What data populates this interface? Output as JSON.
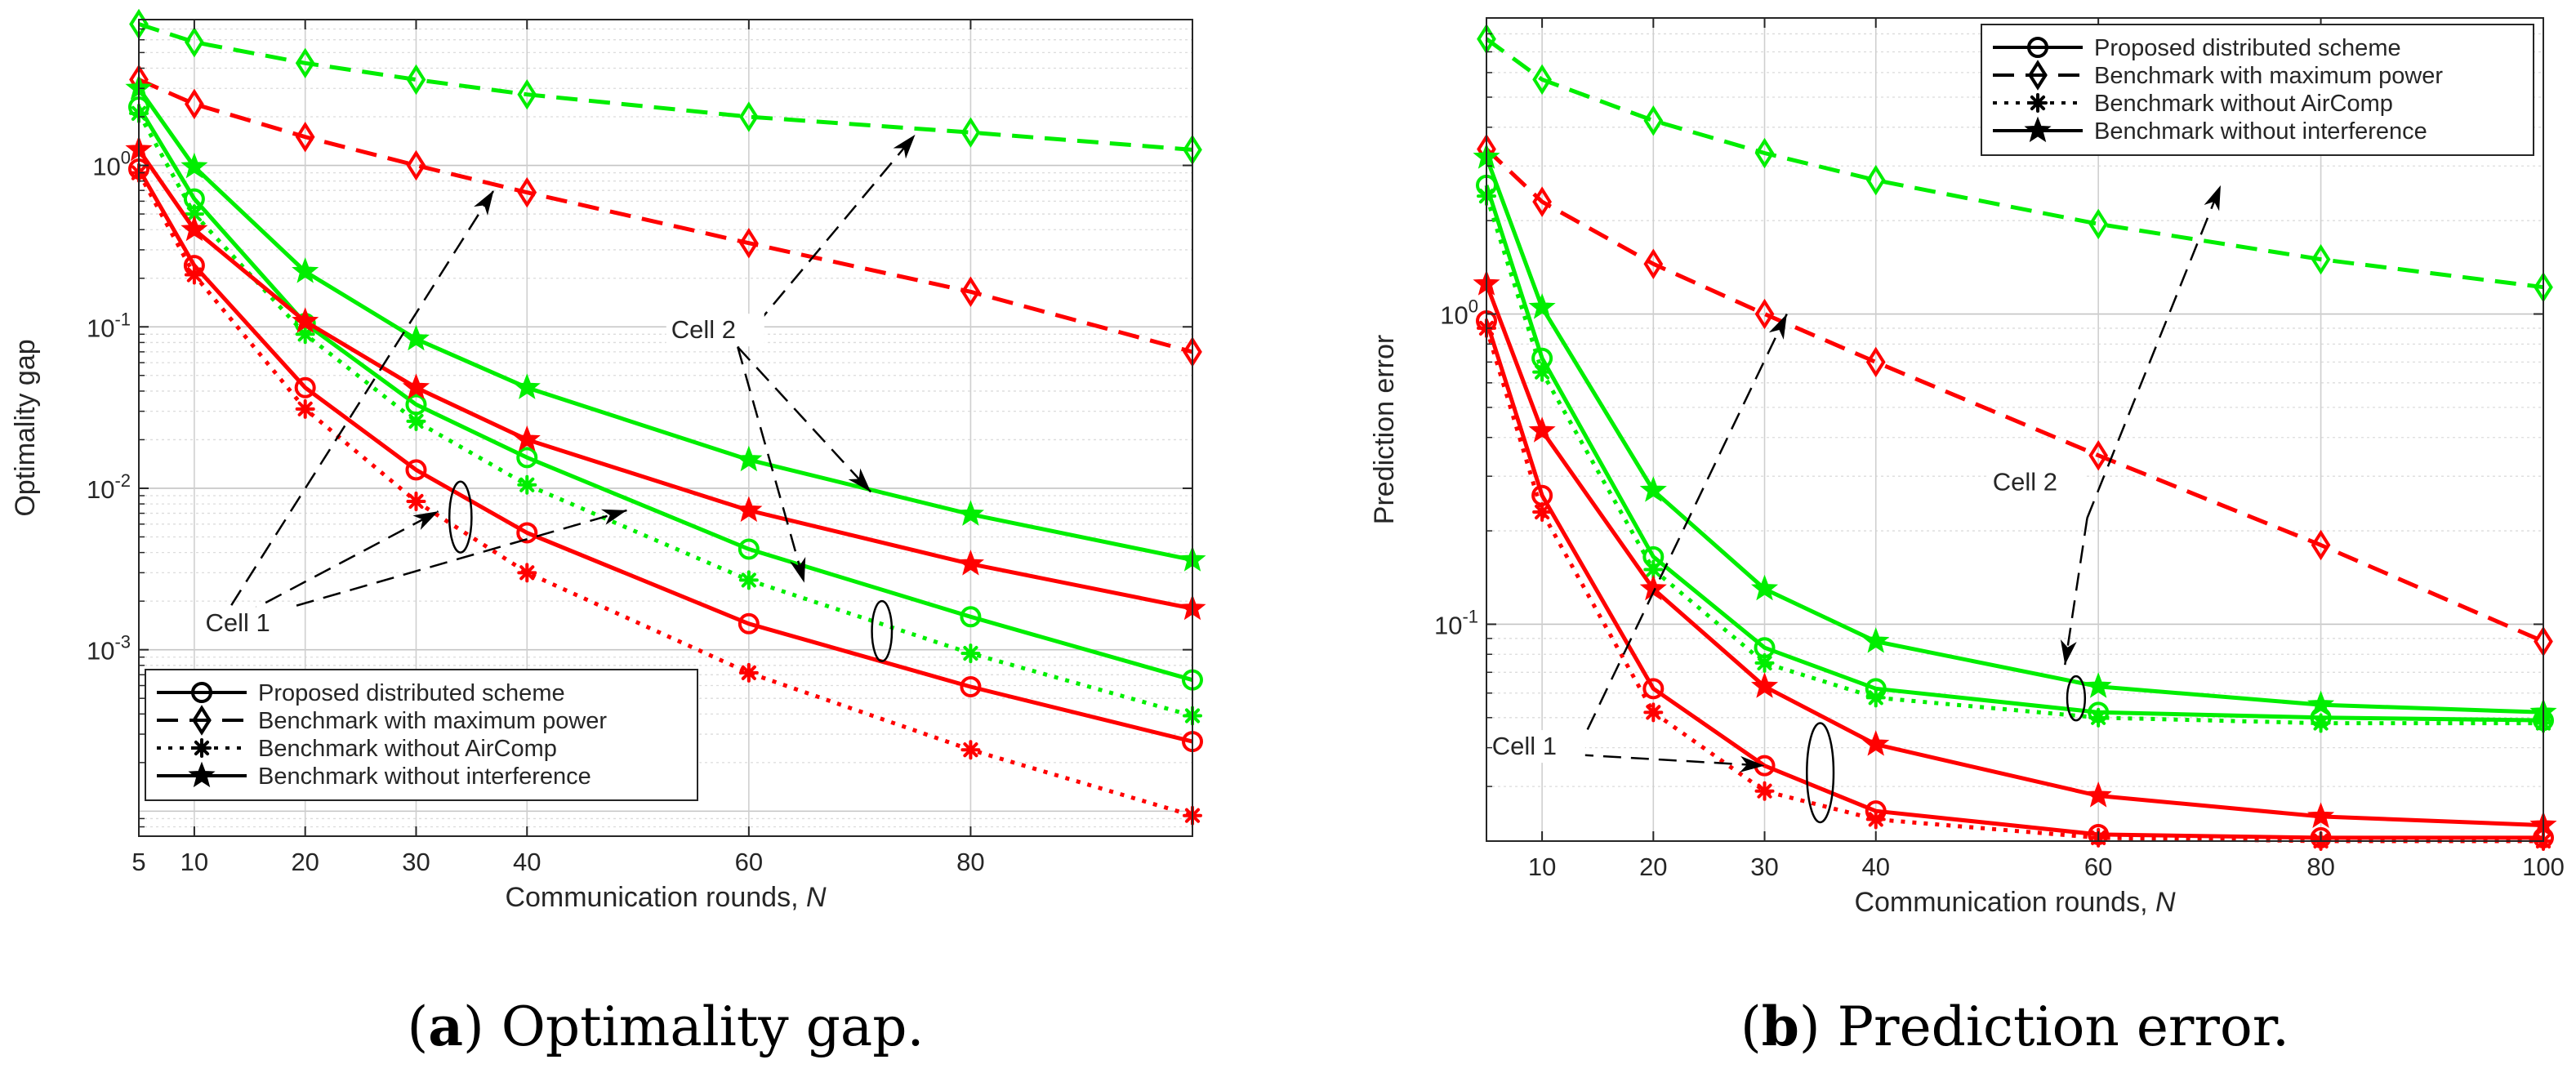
{
  "chart_data": [
    {
      "type": "line",
      "yscale": "log",
      "xlabel": "Communication rounds,",
      "xlabel_var": "N",
      "ylabel": "Optimality gap",
      "xlim": [
        5,
        100
      ],
      "ylim": [
        7e-05,
        8
      ],
      "xticks": [
        5,
        10,
        20,
        30,
        40,
        60,
        80
      ],
      "xtick_labels": [
        "5",
        "10",
        "20",
        "30",
        "40",
        "60",
        "80"
      ],
      "yticks": [
        {
          "value": 1,
          "mantissa": "10",
          "exp": "0"
        },
        {
          "value": 0.1,
          "mantissa": "10",
          "exp": "-1"
        },
        {
          "value": 0.01,
          "mantissa": "10",
          "exp": "-2"
        },
        {
          "value": 0.001,
          "mantissa": "10",
          "exp": "-3"
        }
      ],
      "grid": true,
      "legend_position": "bottom-left",
      "caption_letter": "a",
      "caption_text": " Optimality gap.",
      "series": [
        {
          "scheme": "proposed",
          "cell": "1",
          "color": "#ff0000",
          "x": [
            5,
            10,
            20,
            30,
            40,
            60,
            80,
            100
          ],
          "values": [
            0.95,
            0.24,
            0.042,
            0.013,
            0.0053,
            0.00145,
            0.00059,
            0.00027
          ]
        },
        {
          "scheme": "proposed",
          "cell": "2",
          "color": "#00ee00",
          "x": [
            5,
            10,
            20,
            30,
            40,
            60,
            80,
            100
          ],
          "values": [
            2.3,
            0.62,
            0.105,
            0.033,
            0.0155,
            0.0042,
            0.0016,
            0.00065
          ]
        },
        {
          "scheme": "max_power",
          "cell": "1",
          "color": "#ff0000",
          "x": [
            5,
            10,
            20,
            30,
            40,
            60,
            80,
            100
          ],
          "values": [
            3.4,
            2.4,
            1.5,
            1.0,
            0.68,
            0.33,
            0.165,
            0.07
          ]
        },
        {
          "scheme": "max_power",
          "cell": "2",
          "color": "#00ee00",
          "x": [
            5,
            10,
            20,
            30,
            40,
            60,
            80,
            100
          ],
          "values": [
            7.5,
            5.8,
            4.3,
            3.4,
            2.75,
            2.0,
            1.6,
            1.25
          ]
        },
        {
          "scheme": "no_aircomp",
          "cell": "1",
          "color": "#ff0000",
          "x": [
            5,
            10,
            20,
            30,
            40,
            60,
            80,
            100
          ],
          "values": [
            0.9,
            0.21,
            0.031,
            0.0083,
            0.003,
            0.00072,
            0.00024,
            9.4e-05
          ]
        },
        {
          "scheme": "no_aircomp",
          "cell": "2",
          "color": "#00ee00",
          "x": [
            5,
            10,
            20,
            30,
            40,
            60,
            80,
            100
          ],
          "values": [
            2.1,
            0.5,
            0.09,
            0.026,
            0.0105,
            0.0027,
            0.00095,
            0.00039
          ]
        },
        {
          "scheme": "no_interference",
          "cell": "1",
          "color": "#ff0000",
          "x": [
            5,
            10,
            20,
            30,
            40,
            60,
            80,
            100
          ],
          "values": [
            1.25,
            0.4,
            0.108,
            0.042,
            0.02,
            0.0073,
            0.0034,
            0.0018
          ]
        },
        {
          "scheme": "no_interference",
          "cell": "2",
          "color": "#00ee00",
          "x": [
            5,
            10,
            20,
            30,
            40,
            60,
            80,
            100
          ],
          "values": [
            3.0,
            0.98,
            0.22,
            0.084,
            0.042,
            0.015,
            0.0069,
            0.0036
          ]
        }
      ],
      "annotations": [
        {
          "text": "Cell 1",
          "x": 11,
          "y": 0.0013
        },
        {
          "text": "Cell 2",
          "x": 53,
          "y": 0.085
        }
      ],
      "ellipses": [
        {
          "x": 34,
          "y": 0.0065,
          "rx_units": 1.0,
          "y_top": 0.011,
          "y_bottom": 0.004
        },
        {
          "x": 72,
          "y": 0.0013,
          "rx_units": 0.9,
          "y_top": 0.002,
          "y_bottom": 0.00085
        }
      ],
      "arrows": [
        {
          "from": [
            12,
            0.00135
          ],
          "to": [
            37,
            0.7
          ]
        },
        {
          "from": [
            12,
            0.00135
          ],
          "to": [
            32,
            0.0072
          ]
        },
        {
          "from": [
            12,
            0.00135
          ],
          "to": [
            49,
            0.0073
          ]
        },
        {
          "from": [
            59,
            0.075
          ],
          "to": [
            75,
            1.55
          ]
        },
        {
          "from": [
            59,
            0.075
          ],
          "to": [
            71,
            0.0095
          ]
        },
        {
          "from": [
            59,
            0.075
          ],
          "to": [
            65,
            0.0026
          ]
        }
      ]
    },
    {
      "type": "line",
      "yscale": "log",
      "xlabel": "Communication rounds,",
      "xlabel_var": "N",
      "ylabel": "Prediction error",
      "xlim": [
        5,
        100
      ],
      "ylim": [
        0.02,
        9
      ],
      "xticks": [
        10,
        20,
        30,
        40,
        60,
        80,
        100
      ],
      "xtick_labels": [
        "10",
        "20",
        "30",
        "40",
        "60",
        "80",
        "100"
      ],
      "yticks": [
        {
          "value": 1,
          "mantissa": "10",
          "exp": "0"
        },
        {
          "value": 0.1,
          "mantissa": "10",
          "exp": "-1"
        }
      ],
      "grid": true,
      "legend_position": "top-right",
      "caption_letter": "b",
      "caption_text": " Prediction error.",
      "series": [
        {
          "scheme": "proposed",
          "cell": "1",
          "color": "#ff0000",
          "x": [
            5,
            10,
            20,
            30,
            40,
            60,
            80,
            100
          ],
          "values": [
            0.95,
            0.26,
            0.062,
            0.035,
            0.025,
            0.021,
            0.0205,
            0.0205
          ]
        },
        {
          "scheme": "proposed",
          "cell": "2",
          "color": "#00ee00",
          "x": [
            5,
            10,
            20,
            30,
            40,
            60,
            80,
            100
          ],
          "values": [
            2.6,
            0.72,
            0.165,
            0.084,
            0.062,
            0.052,
            0.05,
            0.049
          ]
        },
        {
          "scheme": "max_power",
          "cell": "1",
          "color": "#ff0000",
          "x": [
            5,
            10,
            20,
            30,
            40,
            60,
            80,
            100
          ],
          "values": [
            3.4,
            2.3,
            1.45,
            1.0,
            0.7,
            0.35,
            0.18,
            0.088
          ]
        },
        {
          "scheme": "max_power",
          "cell": "2",
          "color": "#00ee00",
          "x": [
            5,
            10,
            20,
            30,
            40,
            60,
            80,
            100
          ],
          "values": [
            7.7,
            5.7,
            4.2,
            3.3,
            2.7,
            1.95,
            1.5,
            1.22
          ]
        },
        {
          "scheme": "no_aircomp",
          "cell": "1",
          "color": "#ff0000",
          "x": [
            5,
            10,
            20,
            30,
            40,
            60,
            80,
            100
          ],
          "values": [
            0.9,
            0.23,
            0.052,
            0.029,
            0.0235,
            0.0205,
            0.02,
            0.02
          ]
        },
        {
          "scheme": "no_aircomp",
          "cell": "2",
          "color": "#00ee00",
          "x": [
            5,
            10,
            20,
            30,
            40,
            60,
            80,
            100
          ],
          "values": [
            2.4,
            0.65,
            0.15,
            0.075,
            0.058,
            0.05,
            0.048,
            0.048
          ]
        },
        {
          "scheme": "no_interference",
          "cell": "1",
          "color": "#ff0000",
          "x": [
            5,
            10,
            20,
            30,
            40,
            60,
            80,
            100
          ],
          "values": [
            1.25,
            0.42,
            0.13,
            0.063,
            0.041,
            0.028,
            0.024,
            0.0225
          ]
        },
        {
          "scheme": "no_interference",
          "cell": "2",
          "color": "#00ee00",
          "x": [
            5,
            10,
            20,
            30,
            40,
            60,
            80,
            100
          ],
          "values": [
            3.2,
            1.05,
            0.27,
            0.13,
            0.088,
            0.063,
            0.055,
            0.052
          ]
        }
      ],
      "annotations": [
        {
          "text": "Cell 1",
          "x": 5.5,
          "y": 0.038
        },
        {
          "text": "Cell 2",
          "x": 50.5,
          "y": 0.27
        }
      ],
      "ellipses": [
        {
          "x": 35,
          "y": 0.033,
          "rx_units": 1.2,
          "y_top": 0.048,
          "y_bottom": 0.023
        },
        {
          "x": 58,
          "y": 0.058,
          "rx_units": 0.8,
          "y_top": 0.068,
          "y_bottom": 0.049
        }
      ],
      "arrows": [
        {
          "from": [
            13,
            0.038
          ],
          "to": [
            30,
            0.035
          ]
        },
        {
          "from": [
            13,
            0.038
          ],
          "to": [
            32,
            1.0
          ]
        },
        {
          "from": [
            59,
            0.22
          ],
          "to": [
            71,
            2.6
          ]
        },
        {
          "from": [
            59,
            0.22
          ],
          "to": [
            57,
            0.074
          ]
        }
      ]
    }
  ],
  "legend": {
    "entries": [
      {
        "label": "Proposed distributed scheme",
        "dash": "solid",
        "marker": "circle"
      },
      {
        "label": "Benchmark with maximum power",
        "dash": "dashed",
        "marker": "diamond"
      },
      {
        "label": "Benchmark without AirComp",
        "dash": "dotted",
        "marker": "asterisk"
      },
      {
        "label": "Benchmark without interference",
        "dash": "solid",
        "marker": "star"
      }
    ]
  }
}
